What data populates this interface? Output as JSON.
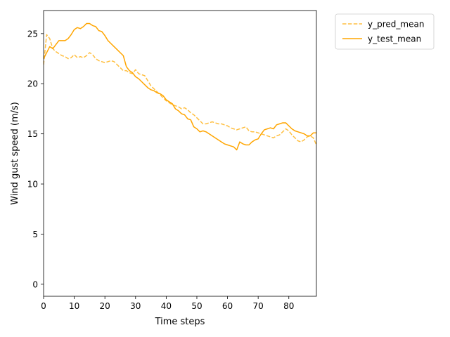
{
  "chart_data": {
    "type": "line",
    "title": "",
    "xlabel": "Time steps",
    "ylabel": "Wind gust speed (m/s)",
    "xlim": [
      0,
      89
    ],
    "ylim": [
      -1.2,
      27.3
    ],
    "xticks": [
      0,
      10,
      20,
      30,
      40,
      50,
      60,
      70,
      80
    ],
    "yticks": [
      0,
      5,
      10,
      15,
      20,
      25
    ],
    "grid": false,
    "legend_position": "outside-top-right",
    "series": [
      {
        "name": "y_pred_mean",
        "style": "dashed",
        "color": "#ffbf40",
        "x": [
          0,
          1,
          2,
          3,
          4,
          5,
          6,
          7,
          8,
          9,
          10,
          11,
          12,
          13,
          14,
          15,
          16,
          17,
          18,
          19,
          20,
          21,
          22,
          23,
          24,
          25,
          26,
          27,
          28,
          29,
          30,
          31,
          32,
          33,
          34,
          35,
          36,
          37,
          38,
          39,
          40,
          41,
          42,
          43,
          44,
          45,
          46,
          47,
          48,
          49,
          50,
          51,
          52,
          53,
          54,
          55,
          56,
          57,
          58,
          59,
          60,
          61,
          62,
          63,
          64,
          65,
          66,
          67,
          68,
          69,
          70,
          71,
          72,
          73,
          74,
          75,
          76,
          77,
          78,
          79,
          80,
          81,
          82,
          83,
          84,
          85,
          86,
          87,
          88,
          89
        ],
        "values": [
          21.9,
          24.9,
          24.5,
          23.5,
          23.2,
          23.0,
          22.8,
          22.7,
          22.5,
          22.6,
          22.9,
          22.6,
          22.7,
          22.6,
          22.8,
          23.1,
          22.9,
          22.5,
          22.3,
          22.2,
          22.1,
          22.2,
          22.3,
          22.2,
          21.9,
          21.6,
          21.3,
          21.3,
          21.1,
          21.0,
          21.4,
          21.0,
          20.9,
          20.8,
          20.3,
          19.8,
          19.5,
          19.2,
          18.9,
          18.6,
          18.3,
          18.1,
          17.9,
          17.8,
          17.7,
          17.5,
          17.6,
          17.4,
          17.1,
          16.9,
          16.6,
          16.3,
          16.0,
          16.0,
          16.1,
          16.2,
          16.1,
          16.0,
          16.0,
          15.9,
          15.8,
          15.6,
          15.5,
          15.4,
          15.5,
          15.6,
          15.7,
          15.3,
          15.2,
          15.2,
          15.1,
          15.0,
          14.9,
          14.8,
          14.7,
          14.6,
          14.8,
          14.9,
          15.2,
          15.5,
          15.3,
          14.9,
          14.6,
          14.3,
          14.2,
          14.4,
          14.7,
          14.8,
          14.6,
          13.9
        ]
      },
      {
        "name": "y_test_mean",
        "style": "solid",
        "color": "#ffa500",
        "x": [
          0,
          1,
          2,
          3,
          4,
          5,
          6,
          7,
          8,
          9,
          10,
          11,
          12,
          13,
          14,
          15,
          16,
          17,
          18,
          19,
          20,
          21,
          22,
          23,
          24,
          25,
          26,
          27,
          28,
          29,
          30,
          31,
          32,
          33,
          34,
          35,
          36,
          37,
          38,
          39,
          40,
          41,
          42,
          43,
          44,
          45,
          46,
          47,
          48,
          49,
          50,
          51,
          52,
          53,
          54,
          55,
          56,
          57,
          58,
          59,
          60,
          61,
          62,
          63,
          64,
          65,
          66,
          67,
          68,
          69,
          70,
          71,
          72,
          73,
          74,
          75,
          76,
          77,
          78,
          79,
          80,
          81,
          82,
          83,
          84,
          85,
          86,
          87,
          88,
          89
        ],
        "values": [
          22.5,
          23.1,
          23.7,
          23.5,
          23.9,
          24.3,
          24.3,
          24.3,
          24.5,
          24.9,
          25.4,
          25.6,
          25.5,
          25.7,
          26.0,
          26.0,
          25.8,
          25.7,
          25.3,
          25.2,
          24.8,
          24.3,
          24.0,
          23.7,
          23.4,
          23.1,
          22.8,
          21.7,
          21.3,
          21.1,
          20.7,
          20.5,
          20.2,
          19.9,
          19.6,
          19.4,
          19.3,
          19.1,
          19.0,
          18.8,
          18.4,
          18.2,
          18.0,
          17.5,
          17.3,
          17.0,
          16.9,
          16.5,
          16.4,
          15.7,
          15.5,
          15.2,
          15.3,
          15.2,
          15.0,
          14.8,
          14.6,
          14.4,
          14.2,
          14.0,
          13.9,
          13.8,
          13.7,
          13.4,
          14.2,
          14.0,
          13.9,
          13.9,
          14.2,
          14.4,
          14.5,
          15.0,
          15.4,
          15.5,
          15.6,
          15.5,
          15.9,
          16.0,
          16.1,
          16.1,
          15.8,
          15.5,
          15.3,
          15.2,
          15.1,
          15.0,
          14.8,
          14.8,
          15.1,
          15.1
        ]
      }
    ]
  }
}
